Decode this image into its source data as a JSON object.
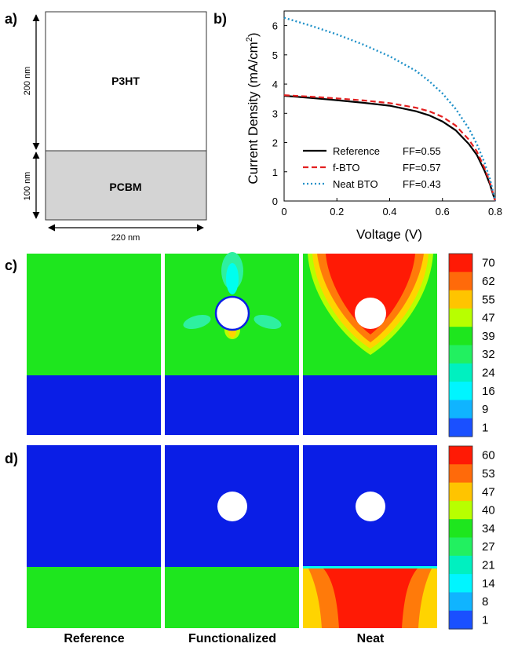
{
  "panel_labels": {
    "a": "a)",
    "b": "b)",
    "c": "c)",
    "d": "d)"
  },
  "device": {
    "layers": [
      {
        "name": "P3HT",
        "thickness": "200 nm",
        "color": "#ffffff"
      },
      {
        "name": "PCBM",
        "thickness": "100 nm",
        "color": "#d4d4d4"
      }
    ],
    "width": "220 nm"
  },
  "chart_data": [
    {
      "type": "line",
      "xlabel": "Voltage (V)",
      "ylabel": "Current Density (mA/cm2)",
      "ylabel_display": {
        "base": "Current Density (mA/cm",
        "sup": "2",
        "tail": ")"
      },
      "xlim": [
        0,
        0.8
      ],
      "ylim": [
        0,
        6.5
      ],
      "xticks": [
        0,
        0.2,
        0.4,
        0.6,
        0.8
      ],
      "xtick_labels": [
        "0",
        "0.2",
        "0.4",
        "0.6",
        "0.8"
      ],
      "yticks": [
        0,
        1,
        2,
        3,
        4,
        5,
        6
      ],
      "legend_position": "bottom-left",
      "series": [
        {
          "name": "Reference",
          "ff": "FF=0.55",
          "color": "#000000",
          "style": "solid",
          "x": [
            0,
            0.1,
            0.2,
            0.3,
            0.4,
            0.5,
            0.55,
            0.6,
            0.65,
            0.7,
            0.73,
            0.76,
            0.78,
            0.79,
            0.8
          ],
          "y": [
            3.6,
            3.53,
            3.45,
            3.36,
            3.26,
            3.07,
            2.93,
            2.72,
            2.42,
            1.95,
            1.58,
            1.03,
            0.57,
            0.28,
            0.0
          ]
        },
        {
          "name": "f-BTO",
          "ff": "FF=0.57",
          "color": "#e32020",
          "style": "dashed",
          "x": [
            0,
            0.1,
            0.2,
            0.3,
            0.4,
            0.5,
            0.55,
            0.6,
            0.65,
            0.7,
            0.73,
            0.76,
            0.78,
            0.79,
            0.8
          ],
          "y": [
            3.62,
            3.57,
            3.51,
            3.44,
            3.35,
            3.19,
            3.07,
            2.88,
            2.58,
            2.1,
            1.7,
            1.12,
            0.63,
            0.32,
            0.0
          ]
        },
        {
          "name": "Neat BTO",
          "ff": "FF=0.43",
          "color": "#1e90c8",
          "style": "dotted",
          "x": [
            0,
            0.1,
            0.2,
            0.3,
            0.4,
            0.5,
            0.55,
            0.6,
            0.65,
            0.7,
            0.73,
            0.76,
            0.78,
            0.79,
            0.8
          ],
          "y": [
            6.27,
            6.0,
            5.7,
            5.35,
            4.95,
            4.45,
            4.1,
            3.68,
            3.15,
            2.48,
            1.95,
            1.3,
            0.75,
            0.38,
            0.0
          ]
        }
      ]
    }
  ],
  "maps": {
    "columns": [
      "Reference",
      "Functionalized",
      "Neat"
    ],
    "colors": {
      "blue": "#0a1ee6",
      "green": "#1ee61e",
      "red": "#ff1a05",
      "orange": "#ff7a0a",
      "yellow": "#ffd400",
      "lime": "#b8ff00",
      "cyan": "#00ffee",
      "teal": "#2ef0a0",
      "white": "#ffffff"
    }
  },
  "colorbar_c": {
    "labels": [
      "70",
      "62",
      "55",
      "47",
      "39",
      "32",
      "24",
      "16",
      "9",
      "1"
    ],
    "colors": [
      "#ff1a05",
      "#ff6a0a",
      "#ffc400",
      "#b8ff00",
      "#1ee61e",
      "#22f060",
      "#00f0c0",
      "#00f5ff",
      "#10b4ff",
      "#1a50ff"
    ]
  },
  "colorbar_d": {
    "labels": [
      "60",
      "53",
      "47",
      "40",
      "34",
      "27",
      "21",
      "14",
      "8",
      "1"
    ],
    "colors": [
      "#ff1a05",
      "#ff6a0a",
      "#ffc400",
      "#b8ff00",
      "#1ee61e",
      "#22f060",
      "#00f0c0",
      "#00f5ff",
      "#10b4ff",
      "#1a50ff"
    ]
  }
}
